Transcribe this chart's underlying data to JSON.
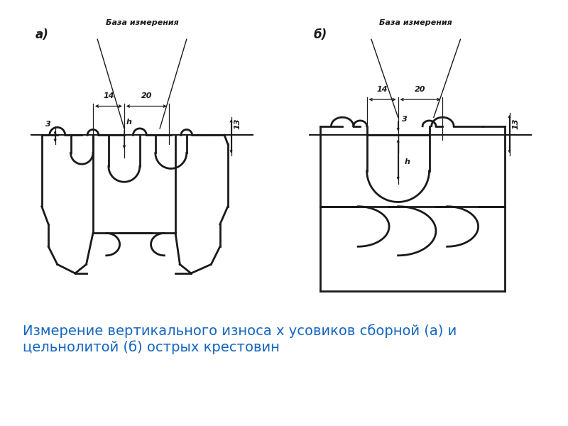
{
  "bg_color": "#ffffff",
  "line_color": "#1a1a1a",
  "caption_color": "#1565C0",
  "caption_text": "Измерение вертикального износа х усовиков сборной (а) и\nцельнолитой (б) острых крестовин",
  "caption_fontsize": 14,
  "label_a": "а)",
  "label_b": "б)",
  "label_baza": "База измерения",
  "dim_14": "14",
  "dim_20": "20",
  "dim_3": "3",
  "dim_h": "h",
  "dim_13": "13"
}
